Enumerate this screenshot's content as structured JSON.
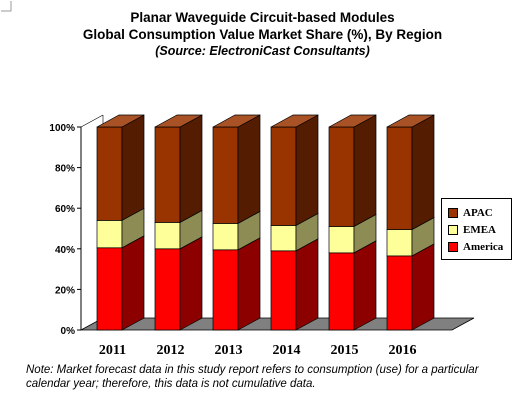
{
  "title_line1": "Planar Waveguide Circuit-based Modules",
  "title_line2": "Global Consumption Value Market Share (%), By Region",
  "title_line3": "(Source: ElectroniCast Consultants)",
  "footnote": "Note: Market forecast data in this study report refers to consumption (use) for a particular calendar year; therefore, this data is not cumulative data.",
  "colors": {
    "America": "#ff0000",
    "EMEA": "#ffff99",
    "APAC": "#993300",
    "floor": "#808080"
  },
  "chart_data": {
    "type": "bar",
    "stacked": true,
    "three_d": true,
    "categories": [
      "2011",
      "2012",
      "2013",
      "2014",
      "2015",
      "2016"
    ],
    "series": [
      {
        "name": "America",
        "values": [
          40.5,
          40,
          39.5,
          39,
          38,
          36.5
        ]
      },
      {
        "name": "EMEA",
        "values": [
          13.5,
          13,
          13,
          12.5,
          13,
          13
        ]
      },
      {
        "name": "APAC",
        "values": [
          46,
          47,
          47.5,
          48.5,
          49,
          50.5
        ]
      }
    ],
    "ylim": [
      0,
      100
    ],
    "yticks": [
      "0%",
      "20%",
      "40%",
      "60%",
      "80%",
      "100%"
    ],
    "legend": {
      "position": "right",
      "entries": [
        "APAC",
        "EMEA",
        "America"
      ]
    },
    "grid": false
  }
}
